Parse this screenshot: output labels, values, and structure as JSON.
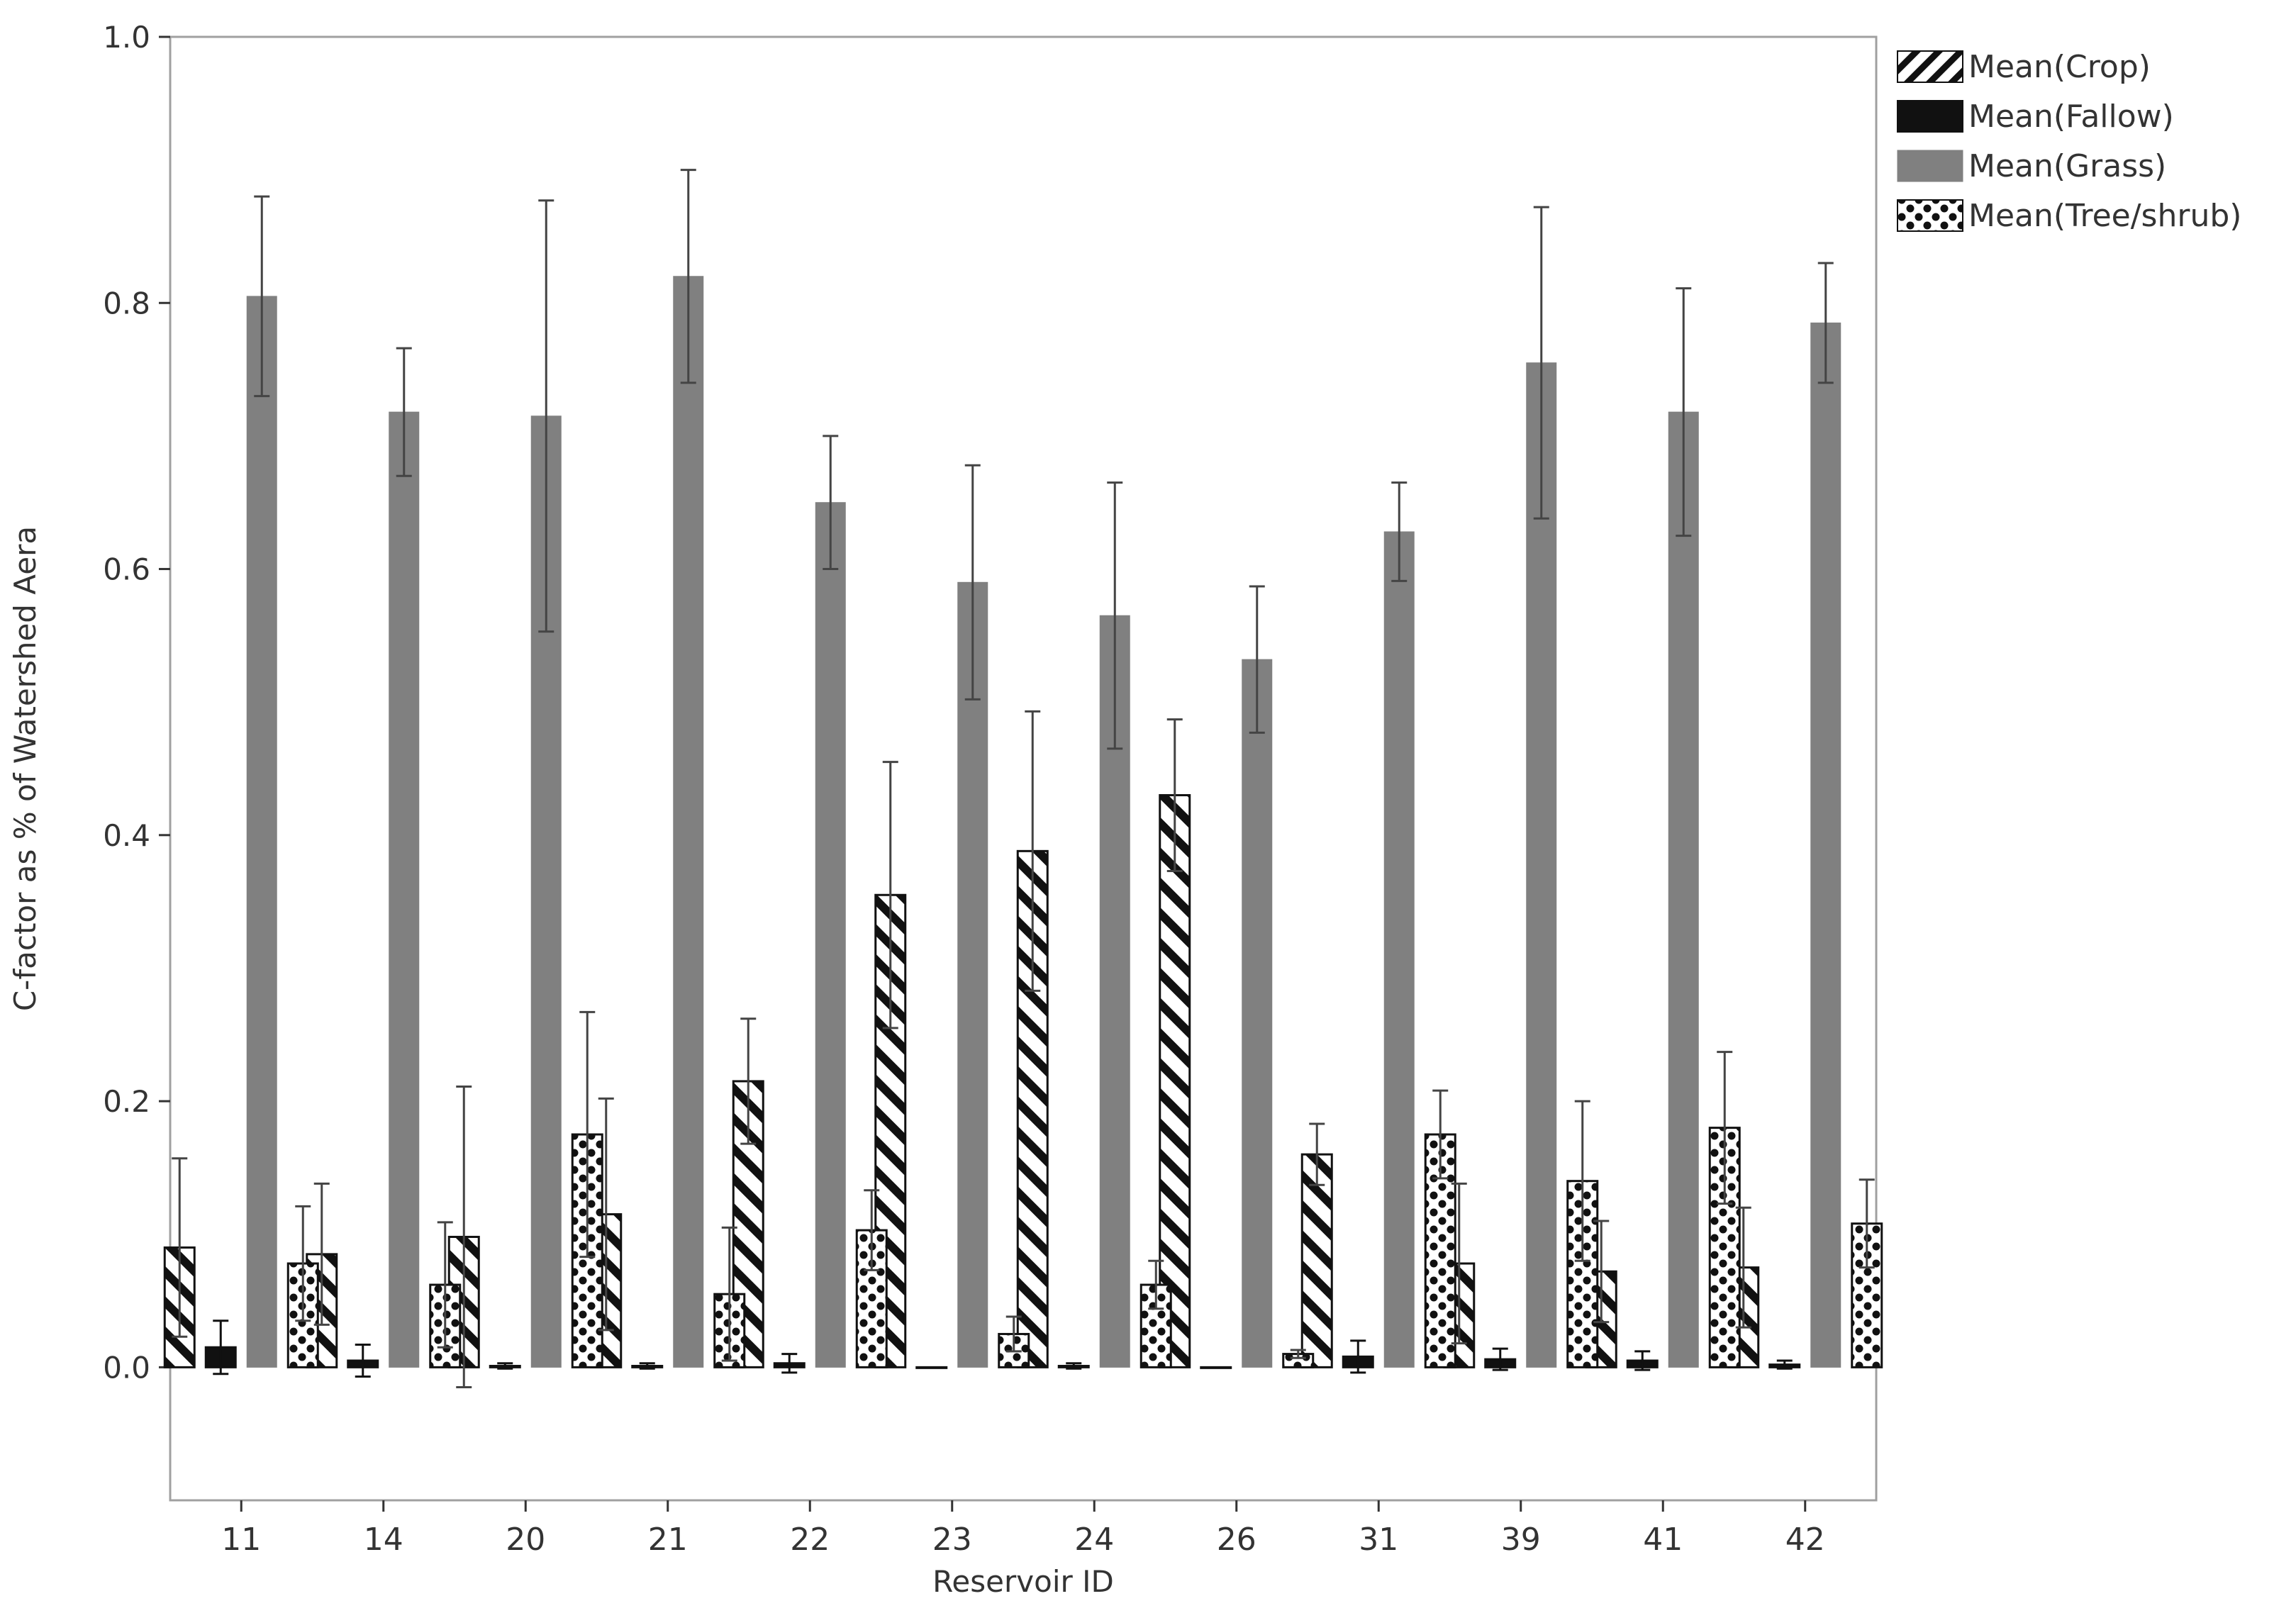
{
  "chart_data": {
    "type": "bar",
    "title": "",
    "xlabel": "Reservoir ID",
    "ylabel": "C-factor as % of Watershed Aera",
    "categories": [
      "11",
      "14",
      "20",
      "21",
      "22",
      "23",
      "24",
      "26",
      "31",
      "39",
      "41",
      "42"
    ],
    "ylim": [
      -0.1,
      1.0
    ],
    "yticks": [
      "0.0",
      "0.2",
      "0.4",
      "0.6",
      "0.8",
      "1.0"
    ],
    "grid": false,
    "legend_position": "right-top",
    "error_bars": true,
    "series": [
      {
        "name": "Mean(Crop)",
        "pattern": "diagonal-stripes",
        "color": "#111111",
        "values": [
          0.09,
          0.085,
          0.098,
          0.115,
          0.215,
          0.355,
          0.388,
          0.43,
          0.16,
          0.078,
          0.072,
          0.075
        ],
        "errors": [
          0.067,
          0.053,
          0.113,
          0.087,
          0.047,
          0.1,
          0.105,
          0.057,
          0.023,
          0.06,
          0.038,
          0.045
        ]
      },
      {
        "name": "Mean(Fallow)",
        "pattern": "solid",
        "color": "#111111",
        "values": [
          0.015,
          0.005,
          0.001,
          0.001,
          0.003,
          0.0,
          0.001,
          0.0,
          0.008,
          0.006,
          0.005,
          0.002
        ],
        "errors": [
          0.02,
          0.012,
          0.002,
          0.002,
          0.007,
          0.0,
          0.002,
          0.0,
          0.012,
          0.008,
          0.007,
          0.003
        ]
      },
      {
        "name": "Mean(Grass)",
        "pattern": "solid",
        "color": "#808080",
        "values": [
          0.805,
          0.718,
          0.715,
          0.82,
          0.65,
          0.59,
          0.565,
          0.532,
          0.628,
          0.755,
          0.718,
          0.785
        ],
        "errors": [
          0.075,
          0.048,
          0.162,
          0.08,
          0.05,
          0.088,
          0.1,
          0.055,
          0.037,
          0.117,
          0.093,
          0.045
        ]
      },
      {
        "name": "Mean(Tree/shrub)",
        "pattern": "dots",
        "color": "#111111",
        "values": [
          0.078,
          0.062,
          0.175,
          0.055,
          0.103,
          0.025,
          0.062,
          0.01,
          0.175,
          0.14,
          0.18,
          0.108
        ],
        "errors": [
          0.043,
          0.047,
          0.092,
          0.05,
          0.03,
          0.013,
          0.018,
          0.003,
          0.033,
          0.06,
          0.057,
          0.033
        ]
      }
    ]
  },
  "colors": {
    "frame": "#a0a0a0",
    "text": "#333333",
    "error_bar": "#444444"
  }
}
